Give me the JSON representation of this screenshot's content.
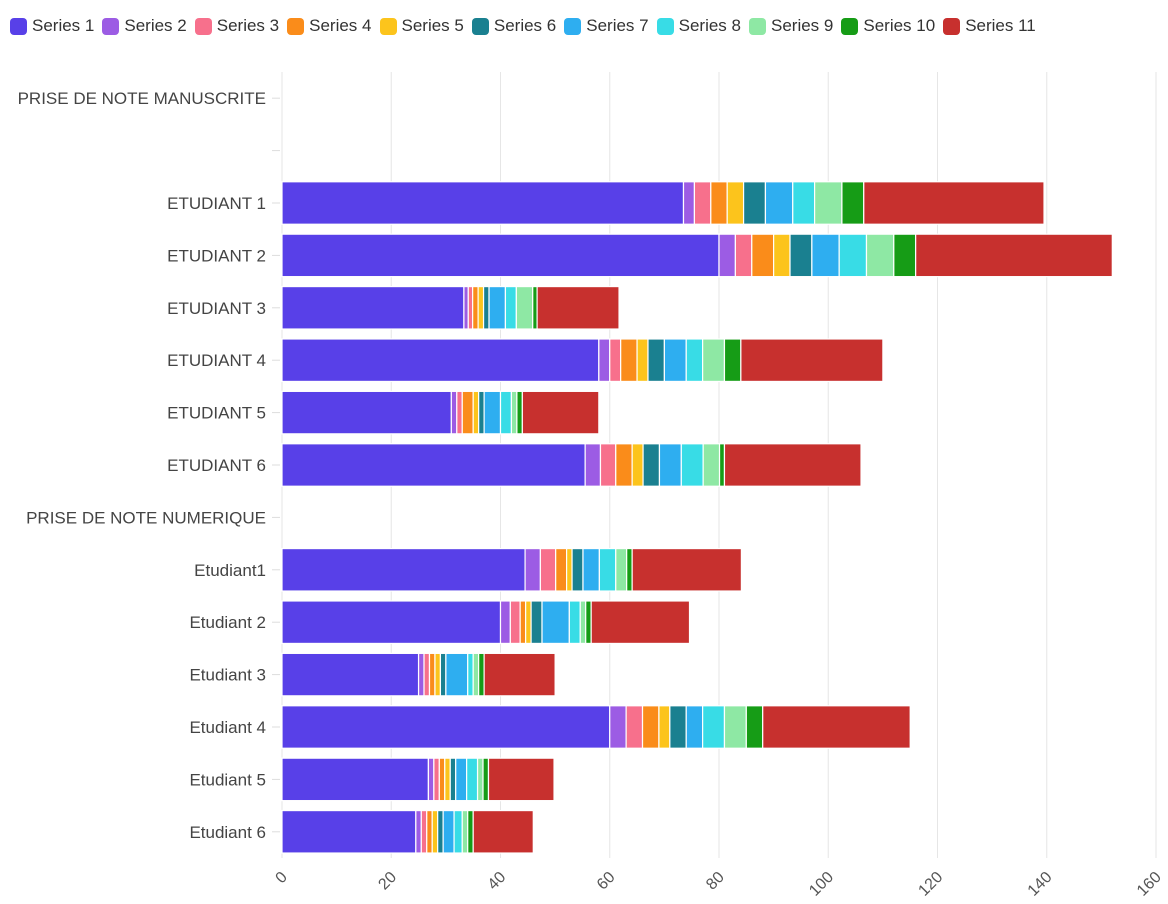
{
  "chart_data": {
    "type": "bar",
    "orientation": "horizontal",
    "stacked": true,
    "legend_position": "top-left",
    "grid": true,
    "xlim": [
      0,
      160
    ],
    "x_ticks": [
      "0",
      "20",
      "40",
      "60",
      "80",
      "100",
      "120",
      "140",
      "160"
    ],
    "categories": [
      "PRISE DE NOTE MANUSCRITE",
      "",
      "ETUDIANT 1",
      "ETUDIANT 2",
      "ETUDIANT 3",
      "ETUDIANT 4",
      "ETUDIANT 5",
      "ETUDIANT 6",
      "PRISE DE NOTE NUMERIQUE",
      "Etudiant1",
      "Etudiant 2",
      "Etudiant 3",
      "Etudiant 4",
      "Etudiant 5",
      "Etudiant 6"
    ],
    "series": [
      {
        "name": "Series 1",
        "color": "#5840e8",
        "values": [
          null,
          null,
          73.5,
          80,
          33.3,
          58,
          31,
          55.5,
          null,
          44.5,
          40,
          25,
          60,
          26.8,
          24.5
        ]
      },
      {
        "name": "Series 2",
        "color": "#9c5ce4",
        "values": [
          null,
          null,
          2,
          3,
          0.8,
          2,
          1,
          2.8,
          null,
          2.8,
          1.8,
          1,
          3,
          1,
          1
        ]
      },
      {
        "name": "Series 3",
        "color": "#f7708c",
        "values": [
          null,
          null,
          3,
          3,
          0.8,
          2,
          1,
          2.8,
          null,
          2.8,
          1.8,
          1,
          3,
          1,
          1
        ]
      },
      {
        "name": "Series 4",
        "color": "#fa8c1a",
        "values": [
          null,
          null,
          3,
          4,
          1,
          3,
          2,
          3,
          null,
          2,
          1,
          1,
          3,
          1,
          1
        ]
      },
      {
        "name": "Series 5",
        "color": "#fcc41c",
        "values": [
          null,
          null,
          3,
          3,
          1,
          2,
          1,
          2,
          null,
          1,
          1,
          1,
          2,
          1,
          1
        ]
      },
      {
        "name": "Series 6",
        "color": "#1a8090",
        "values": [
          null,
          null,
          4,
          4,
          1,
          3,
          1,
          3,
          null,
          2,
          2,
          1,
          3,
          1,
          1
        ]
      },
      {
        "name": "Series 7",
        "color": "#2eaef0",
        "values": [
          null,
          null,
          5,
          5,
          3,
          4,
          3,
          4,
          null,
          3,
          5,
          4,
          3,
          2,
          2
        ]
      },
      {
        "name": "Series 8",
        "color": "#38dce6",
        "values": [
          null,
          null,
          4,
          5,
          2,
          3,
          2,
          4,
          null,
          3,
          2,
          1,
          4,
          2,
          1.5
        ]
      },
      {
        "name": "Series 9",
        "color": "#8ee8a4",
        "values": [
          null,
          null,
          5,
          5,
          3,
          4,
          1,
          3,
          null,
          2,
          1,
          1,
          4,
          1,
          1
        ]
      },
      {
        "name": "Series 10",
        "color": "#169c16",
        "values": [
          null,
          null,
          4,
          4,
          0.8,
          3,
          1,
          0.9,
          null,
          1,
          1,
          1,
          3,
          1,
          1
        ]
      },
      {
        "name": "Series 11",
        "color": "#c7302e",
        "values": [
          null,
          null,
          33,
          36,
          15,
          26,
          14,
          25,
          null,
          20,
          18,
          13,
          27,
          12,
          11
        ]
      }
    ]
  }
}
